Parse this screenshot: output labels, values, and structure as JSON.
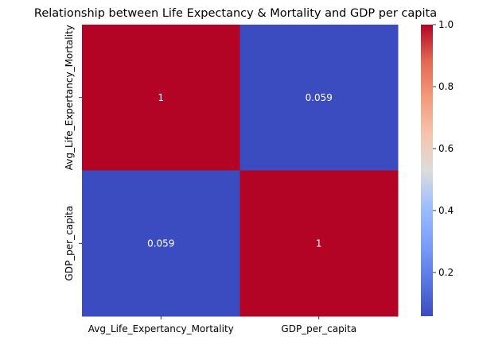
{
  "chart_data": {
    "type": "heatmap",
    "title": "Relationship between Life Expectancy & Mortality and GDP per capita",
    "x_categories": [
      "Avg_Life_Expertancy_Mortality",
      "GDP_per_capita"
    ],
    "y_categories": [
      "Avg_Life_Expertancy_Mortality",
      "GDP_per_capita"
    ],
    "values": [
      [
        1,
        0.059
      ],
      [
        0.059,
        1
      ]
    ],
    "annotations": [
      [
        "1",
        "0.059"
      ],
      [
        "0.059",
        "1"
      ]
    ],
    "colormap": "coolwarm",
    "colormap_low": "#3b4cc0",
    "colormap_high": "#b40426",
    "annotation_color_on_red": "#ffffff",
    "annotation_color_on_blue": "#ffffff",
    "colorbar": {
      "range": [
        0.059,
        1.0
      ],
      "ticks": [
        0.2,
        0.4,
        0.6,
        0.8,
        1.0
      ],
      "tick_labels": [
        "0.2",
        "0.4",
        "0.6",
        "0.8",
        "1.0"
      ]
    }
  }
}
